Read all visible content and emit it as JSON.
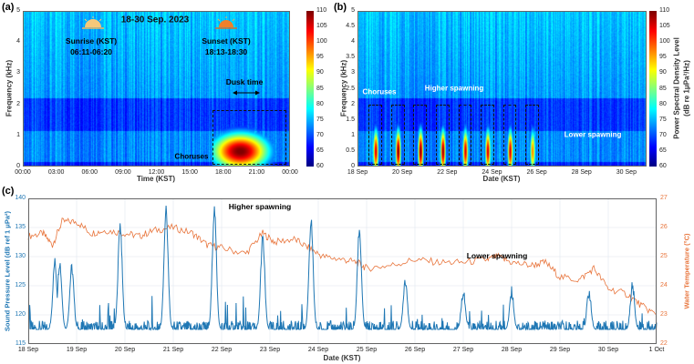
{
  "panels": {
    "a": "(a)",
    "b": "(b)",
    "c": "(c)"
  },
  "colors": {
    "spl": "#1f77b4",
    "temp": "#e8743b",
    "grid": "#dfe6ee"
  },
  "chart_data": [
    {
      "type": "heatmap",
      "id": "a",
      "title": "18-30 Sep. 2023",
      "xlabel": "Time (KST)",
      "ylabel": "Frequency (kHz)",
      "xlim": [
        0,
        24
      ],
      "ylim": [
        0,
        5
      ],
      "xticks": [
        {
          "v": 0,
          "label": "00:00"
        },
        {
          "v": 3,
          "label": "03:00"
        },
        {
          "v": 6,
          "label": "06:00"
        },
        {
          "v": 9,
          "label": "09:00"
        },
        {
          "v": 12,
          "label": "12:00"
        },
        {
          "v": 15,
          "label": "15:00"
        },
        {
          "v": 18,
          "label": "18:00"
        },
        {
          "v": 21,
          "label": "21:00"
        },
        {
          "v": 24,
          "label": "00:00"
        }
      ],
      "yticks": [
        {
          "v": 0,
          "label": "0"
        },
        {
          "v": 1,
          "label": "1"
        },
        {
          "v": 2,
          "label": "2"
        },
        {
          "v": 3,
          "label": "3"
        },
        {
          "v": 4,
          "label": "4"
        },
        {
          "v": 5,
          "label": "5"
        }
      ],
      "colorbar": {
        "range": [
          60,
          110
        ],
        "ticks": [
          "110",
          "105",
          "100",
          "95",
          "90",
          "85",
          "80",
          "75",
          "70",
          "65",
          "60"
        ]
      },
      "chorus_peak": {
        "time_h": 19.5,
        "freq_khz": 0.5,
        "level_db": 108
      },
      "annotations": {
        "sunrise_label": "Sunrise (KST)",
        "sunrise_range": "06:11-06:20",
        "sunset_label": "Sunset (KST)",
        "sunset_range": "18:13-18:30",
        "dusk": "Dusk time",
        "choruses": "Choruses"
      },
      "chorus_box": {
        "time_h": [
          17,
          23.7
        ],
        "freq_khz": [
          0.05,
          1.8
        ]
      },
      "dusk_arrow_h": [
        19,
        21
      ]
    },
    {
      "type": "heatmap",
      "id": "b",
      "xlabel": "Date (KST)",
      "ylabel": "Frequency (kHz)",
      "xlim": [
        18,
        30.9
      ],
      "ylim": [
        0,
        5
      ],
      "xticks": [
        {
          "v": 18,
          "label": "18 Sep"
        },
        {
          "v": 20,
          "label": "20 Sep"
        },
        {
          "v": 22,
          "label": "22 Sep"
        },
        {
          "v": 24,
          "label": "24 Sep"
        },
        {
          "v": 26,
          "label": "26 Sep"
        },
        {
          "v": 28,
          "label": "28 Sep"
        },
        {
          "v": 30,
          "label": "30 Sep"
        }
      ],
      "yticks": [
        {
          "v": 0,
          "label": "0"
        },
        {
          "v": 0.5,
          "label": "0.5"
        },
        {
          "v": 1,
          "label": "1"
        },
        {
          "v": 1.5,
          "label": "1.5"
        },
        {
          "v": 2,
          "label": "2"
        },
        {
          "v": 2.5,
          "label": "2.5"
        },
        {
          "v": 3,
          "label": "3"
        },
        {
          "v": 3.5,
          "label": "3.5"
        },
        {
          "v": 4,
          "label": "4"
        },
        {
          "v": 4.5,
          "label": "4.5"
        },
        {
          "v": 5,
          "label": "5"
        }
      ],
      "colorbar": {
        "range": [
          60,
          110
        ],
        "ticks": [
          "110",
          "105",
          "100",
          "95",
          "90",
          "85",
          "80",
          "75",
          "70",
          "65",
          "60"
        ],
        "label": "Power Spectral Density Level",
        "unit": "(dB re 1μPa²/Hz)"
      },
      "chorus_days": [
        18.8,
        19.8,
        20.8,
        21.8,
        22.8,
        23.8,
        24.8,
        25.8
      ],
      "chorus_levels_db": [
        104,
        108,
        108,
        107,
        104,
        104,
        104,
        96
      ],
      "chorus_box_freq_khz": [
        0.05,
        2.0
      ],
      "annotations": {
        "choruses": "Choruses",
        "higher": "Higher spawning",
        "lower": "Lower spawning"
      }
    },
    {
      "type": "line",
      "id": "c",
      "xlabel": "Date (KST)",
      "ylabel_left": "Sound Pressure Level (dB ref 1 μPa²)",
      "ylabel_right": "Water Temperature (°C)",
      "xlim": [
        18,
        31
      ],
      "ylim_left": [
        115,
        140
      ],
      "ylim_right": [
        22,
        27
      ],
      "xticks": [
        {
          "v": 18,
          "label": "18 Sep"
        },
        {
          "v": 19,
          "label": "19 Sep"
        },
        {
          "v": 20,
          "label": "20 Sep"
        },
        {
          "v": 21,
          "label": "21 Sep"
        },
        {
          "v": 22,
          "label": "22 Sep"
        },
        {
          "v": 23,
          "label": "23 Sep"
        },
        {
          "v": 24,
          "label": "24 Sep"
        },
        {
          "v": 25,
          "label": "25 Sep"
        },
        {
          "v": 26,
          "label": "26 Sep"
        },
        {
          "v": 27,
          "label": "27 Sep"
        },
        {
          "v": 28,
          "label": "28 Sep"
        },
        {
          "v": 29,
          "label": "29 Sep"
        },
        {
          "v": 30,
          "label": "30 Sep"
        },
        {
          "v": 31,
          "label": "1 Oct"
        }
      ],
      "yticks_left": [
        "115",
        "120",
        "125",
        "130",
        "135",
        "140"
      ],
      "yticks_right": [
        "22",
        "23",
        "24",
        "25",
        "26",
        "27"
      ],
      "annotations": {
        "higher": "Higher spawning",
        "lower": "Lower spawning"
      },
      "series": [
        {
          "name": "Sound Pressure Level",
          "axis": "left",
          "baseline_db": 117.5,
          "peaks": [
            [
              18.55,
              129
            ],
            [
              18.65,
              129
            ],
            [
              18.9,
              128
            ],
            [
              19.9,
              135.5
            ],
            [
              20.85,
              138
            ],
            [
              21.85,
              138
            ],
            [
              22.85,
              133
            ],
            [
              23.85,
              136
            ],
            [
              24.85,
              134.5
            ],
            [
              25.8,
              126
            ],
            [
              27.0,
              124
            ],
            [
              28.0,
              124
            ],
            [
              29.6,
              124
            ],
            [
              30.5,
              125
            ]
          ]
        },
        {
          "name": "Water Temperature",
          "axis": "right",
          "points": [
            [
              18,
              25.7
            ],
            [
              18.3,
              25.8
            ],
            [
              18.5,
              25.4
            ],
            [
              18.7,
              26.2
            ],
            [
              19.0,
              26.2
            ],
            [
              19.3,
              25.8
            ],
            [
              19.6,
              25.9
            ],
            [
              20.0,
              25.8
            ],
            [
              20.3,
              25.7
            ],
            [
              20.6,
              25.9
            ],
            [
              21.0,
              26.0
            ],
            [
              21.4,
              25.8
            ],
            [
              21.7,
              25.4
            ],
            [
              22.0,
              25.3
            ],
            [
              22.5,
              25.1
            ],
            [
              22.85,
              25.8
            ],
            [
              23.1,
              25.5
            ],
            [
              23.5,
              25.6
            ],
            [
              23.8,
              25.3
            ],
            [
              24.1,
              25.0
            ],
            [
              24.5,
              24.9
            ],
            [
              24.8,
              24.8
            ],
            [
              25.0,
              24.6
            ],
            [
              25.5,
              24.7
            ],
            [
              26.0,
              24.9
            ],
            [
              26.5,
              24.8
            ],
            [
              27.0,
              24.8
            ],
            [
              27.5,
              24.9
            ],
            [
              27.7,
              25.0
            ],
            [
              28.0,
              24.8
            ],
            [
              28.4,
              24.7
            ],
            [
              28.7,
              24.8
            ],
            [
              29.0,
              24.3
            ],
            [
              29.4,
              24.2
            ],
            [
              29.7,
              24.6
            ],
            [
              30.0,
              23.9
            ],
            [
              30.4,
              23.7
            ],
            [
              30.7,
              23.3
            ],
            [
              31.0,
              23.0
            ]
          ]
        }
      ]
    }
  ]
}
